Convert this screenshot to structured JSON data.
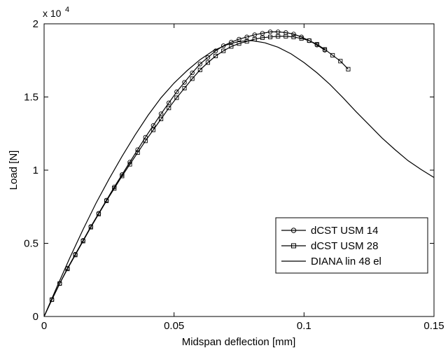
{
  "chart_data": {
    "type": "line",
    "xlabel": "Midspan deflection [mm]",
    "ylabel": "Load [N]",
    "xlim": [
      0,
      0.15
    ],
    "ylim": [
      0,
      20000
    ],
    "x_ticks": [
      "0",
      "0.05",
      "0.1",
      "0.15"
    ],
    "y_ticks": [
      "0",
      "0.5",
      "1",
      "1.5",
      "2"
    ],
    "y_multiplier": {
      "base": "x 10",
      "exponent": "4"
    },
    "grid": false,
    "legend_position": "lower-right",
    "series": [
      {
        "name": "dCST USM 14",
        "marker": "circle",
        "color": "#000000",
        "x": [
          0.003,
          0.006,
          0.009,
          0.012,
          0.015,
          0.018,
          0.021,
          0.024,
          0.027,
          0.03,
          0.033,
          0.036,
          0.039,
          0.042,
          0.045,
          0.048,
          0.051,
          0.054,
          0.057,
          0.06,
          0.063,
          0.066,
          0.069,
          0.072,
          0.075,
          0.078,
          0.081,
          0.084,
          0.087,
          0.09,
          0.093,
          0.096,
          0.099,
          0.102,
          0.105,
          0.108
        ],
        "y": [
          1150,
          2250,
          3300,
          4250,
          5200,
          6150,
          7050,
          7950,
          8850,
          9700,
          10550,
          11400,
          12250,
          13050,
          13850,
          14600,
          15350,
          16000,
          16650,
          17250,
          17700,
          18150,
          18500,
          18750,
          18950,
          19100,
          19250,
          19350,
          19450,
          19450,
          19400,
          19300,
          19100,
          18850,
          18550,
          18200
        ]
      },
      {
        "name": "dCST USM 28",
        "marker": "square",
        "color": "#000000",
        "x": [
          0.003,
          0.006,
          0.009,
          0.012,
          0.015,
          0.018,
          0.021,
          0.024,
          0.027,
          0.03,
          0.033,
          0.036,
          0.039,
          0.042,
          0.045,
          0.048,
          0.051,
          0.054,
          0.057,
          0.06,
          0.063,
          0.066,
          0.069,
          0.072,
          0.075,
          0.078,
          0.081,
          0.084,
          0.087,
          0.09,
          0.093,
          0.096,
          0.099,
          0.102,
          0.105,
          0.108,
          0.111,
          0.114,
          0.117
        ],
        "y": [
          1150,
          2250,
          3250,
          4200,
          5150,
          6100,
          7000,
          7900,
          8750,
          9600,
          10400,
          11200,
          12000,
          12750,
          13500,
          14250,
          14950,
          15600,
          16250,
          16850,
          17350,
          17800,
          18150,
          18450,
          18650,
          18800,
          18950,
          19050,
          19100,
          19150,
          19150,
          19100,
          19000,
          18850,
          18600,
          18250,
          17850,
          17450,
          16900
        ]
      },
      {
        "name": "DIANA lin 48 el",
        "marker": "none",
        "color": "#000000",
        "x": [
          0.0,
          0.005,
          0.01,
          0.015,
          0.02,
          0.025,
          0.03,
          0.035,
          0.04,
          0.045,
          0.05,
          0.055,
          0.06,
          0.065,
          0.07,
          0.075,
          0.08,
          0.085,
          0.09,
          0.095,
          0.1,
          0.105,
          0.11,
          0.115,
          0.12,
          0.125,
          0.13,
          0.135,
          0.14,
          0.145,
          0.15
        ],
        "y": [
          0,
          2050,
          4050,
          5950,
          7750,
          9400,
          10950,
          12400,
          13750,
          14950,
          15950,
          16800,
          17550,
          18150,
          18550,
          18800,
          18850,
          18700,
          18400,
          17950,
          17350,
          16650,
          15850,
          14950,
          14000,
          13100,
          12200,
          11400,
          10650,
          10050,
          9500
        ]
      }
    ]
  }
}
